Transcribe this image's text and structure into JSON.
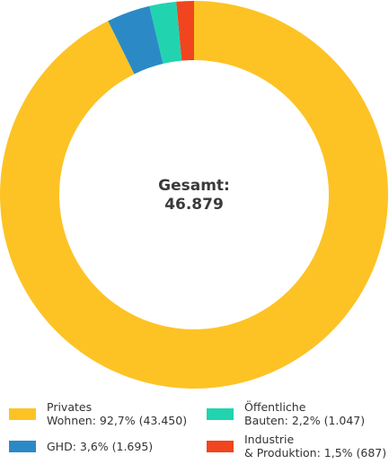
{
  "chart_data": {
    "type": "donut",
    "categories": [
      "Privates\nWohnen: 92,7% (43.450)",
      "GHD: 3,6% (1.695)",
      "Öffentliche\nBauten: 2,2% (1.047)",
      "Industrie\n& Produktion: 1,5% (687)"
    ],
    "values": [
      43450,
      1695,
      1047,
      687
    ],
    "colors": [
      "#fdc325",
      "#2b8ac6",
      "#22d3b0",
      "#f0451e"
    ],
    "center_text": [
      "Gesamt:",
      "46.879"
    ]
  }
}
